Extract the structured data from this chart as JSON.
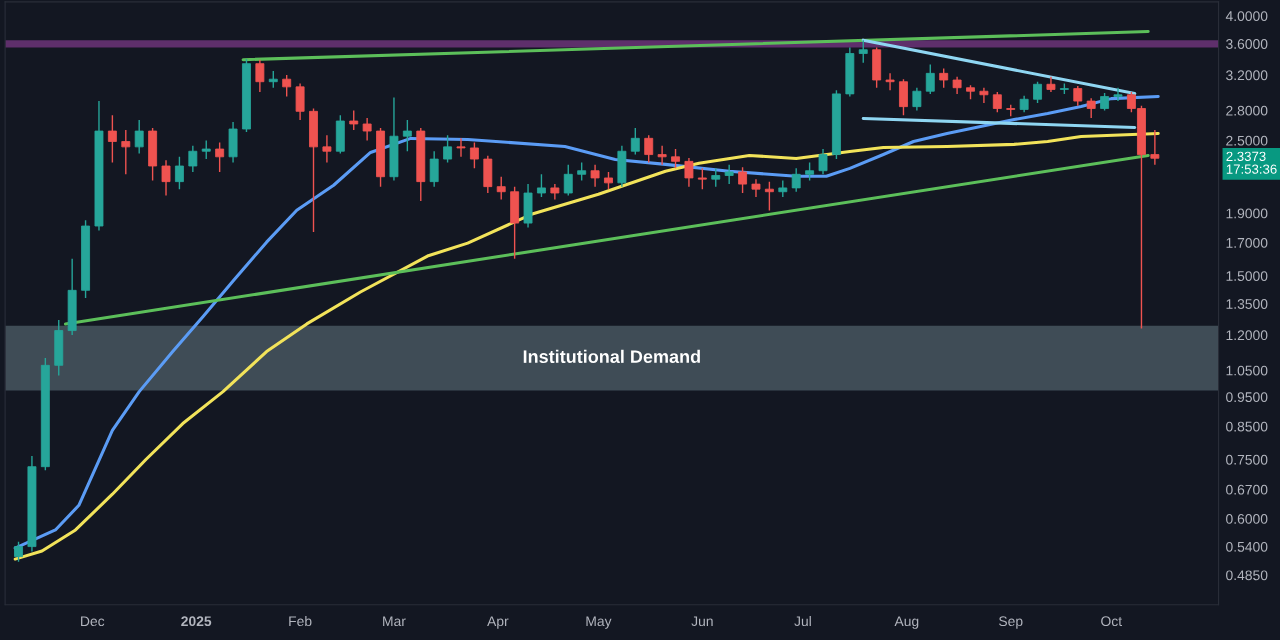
{
  "chart_data": {
    "type": "candlestick",
    "log": "y",
    "x": [
      "2024-11-09",
      "2024-11-13",
      "2024-11-17",
      "2024-11-21",
      "2024-11-25",
      "2024-11-29",
      "2024-12-03",
      "2024-12-07",
      "2024-12-11",
      "2024-12-15",
      "2024-12-19",
      "2024-12-23",
      "2024-12-27",
      "2024-12-31",
      "2025-01-04",
      "2025-01-08",
      "2025-01-12",
      "2025-01-16",
      "2025-01-20",
      "2025-01-24",
      "2025-01-28",
      "2025-02-01",
      "2025-02-05",
      "2025-02-09",
      "2025-02-13",
      "2025-02-17",
      "2025-02-21",
      "2025-02-25",
      "2025-03-01",
      "2025-03-05",
      "2025-03-09",
      "2025-03-13",
      "2025-03-17",
      "2025-03-21",
      "2025-03-25",
      "2025-03-29",
      "2025-04-02",
      "2025-04-06",
      "2025-04-10",
      "2025-04-14",
      "2025-04-18",
      "2025-04-22",
      "2025-04-26",
      "2025-04-30",
      "2025-05-04",
      "2025-05-08",
      "2025-05-12",
      "2025-05-16",
      "2025-05-20",
      "2025-05-24",
      "2025-05-28",
      "2025-06-01",
      "2025-06-05",
      "2025-06-09",
      "2025-06-13",
      "2025-06-17",
      "2025-06-21",
      "2025-06-25",
      "2025-06-29",
      "2025-07-03",
      "2025-07-07",
      "2025-07-11",
      "2025-07-15",
      "2025-07-19",
      "2025-07-23",
      "2025-07-27",
      "2025-07-31",
      "2025-08-04",
      "2025-08-08",
      "2025-08-12",
      "2025-08-16",
      "2025-08-20",
      "2025-08-24",
      "2025-08-28",
      "2025-09-01",
      "2025-09-05",
      "2025-09-09",
      "2025-09-13",
      "2025-09-17",
      "2025-09-21",
      "2025-09-25",
      "2025-09-29",
      "2025-10-03",
      "2025-10-07",
      "2025-10-10",
      "2025-10-14"
    ],
    "ohlc": [
      [
        0.52,
        0.55,
        0.51,
        0.54
      ],
      [
        0.54,
        0.76,
        0.53,
        0.73
      ],
      [
        0.73,
        1.1,
        0.72,
        1.07
      ],
      [
        1.07,
        1.27,
        1.03,
        1.22
      ],
      [
        1.22,
        1.6,
        1.2,
        1.42
      ],
      [
        1.42,
        1.85,
        1.38,
        1.81
      ],
      [
        1.81,
        2.9,
        1.78,
        2.59
      ],
      [
        2.59,
        2.75,
        2.3,
        2.49
      ],
      [
        2.49,
        2.6,
        2.2,
        2.44
      ],
      [
        2.44,
        2.7,
        2.38,
        2.59
      ],
      [
        2.59,
        2.62,
        2.15,
        2.27
      ],
      [
        2.27,
        2.32,
        2.03,
        2.14
      ],
      [
        2.14,
        2.35,
        2.08,
        2.27
      ],
      [
        2.27,
        2.45,
        2.22,
        2.4
      ],
      [
        2.4,
        2.5,
        2.33,
        2.42
      ],
      [
        2.42,
        2.48,
        2.22,
        2.35
      ],
      [
        2.35,
        2.68,
        2.3,
        2.61
      ],
      [
        2.61,
        3.4,
        2.58,
        3.34
      ],
      [
        3.34,
        3.39,
        3.0,
        3.12
      ],
      [
        3.12,
        3.25,
        3.05,
        3.15
      ],
      [
        3.15,
        3.2,
        2.95,
        3.06
      ],
      [
        3.06,
        3.1,
        2.7,
        2.79
      ],
      [
        2.79,
        2.82,
        1.77,
        2.44
      ],
      [
        2.44,
        2.55,
        2.3,
        2.4
      ],
      [
        2.4,
        2.75,
        2.38,
        2.69
      ],
      [
        2.69,
        2.8,
        2.6,
        2.66
      ],
      [
        2.66,
        2.72,
        2.5,
        2.59
      ],
      [
        2.59,
        2.62,
        2.1,
        2.18
      ],
      [
        2.18,
        2.94,
        2.15,
        2.54
      ],
      [
        2.54,
        2.7,
        2.4,
        2.59
      ],
      [
        2.59,
        2.62,
        1.99,
        2.14
      ],
      [
        2.14,
        2.4,
        2.1,
        2.33
      ],
      [
        2.33,
        2.55,
        2.3,
        2.44
      ],
      [
        2.44,
        2.52,
        2.35,
        2.43
      ],
      [
        2.43,
        2.48,
        2.25,
        2.33
      ],
      [
        2.33,
        2.36,
        2.05,
        2.1
      ],
      [
        2.1,
        2.18,
        2.0,
        2.06
      ],
      [
        2.06,
        2.1,
        1.6,
        1.83
      ],
      [
        1.83,
        2.12,
        1.8,
        2.05
      ],
      [
        2.05,
        2.2,
        2.02,
        2.09
      ],
      [
        2.09,
        2.12,
        2.0,
        2.05
      ],
      [
        2.05,
        2.28,
        2.03,
        2.2
      ],
      [
        2.2,
        2.3,
        2.15,
        2.23
      ],
      [
        2.23,
        2.28,
        2.1,
        2.17
      ],
      [
        2.17,
        2.22,
        2.08,
        2.13
      ],
      [
        2.13,
        2.45,
        2.1,
        2.4
      ],
      [
        2.4,
        2.62,
        2.37,
        2.52
      ],
      [
        2.52,
        2.55,
        2.3,
        2.37
      ],
      [
        2.37,
        2.45,
        2.28,
        2.35
      ],
      [
        2.35,
        2.42,
        2.25,
        2.31
      ],
      [
        2.31,
        2.34,
        2.1,
        2.17
      ],
      [
        2.17,
        2.25,
        2.08,
        2.16
      ],
      [
        2.16,
        2.25,
        2.1,
        2.19
      ],
      [
        2.19,
        2.28,
        2.12,
        2.22
      ],
      [
        2.22,
        2.26,
        2.05,
        2.12
      ],
      [
        2.12,
        2.16,
        2.02,
        2.08
      ],
      [
        2.08,
        2.14,
        1.92,
        2.06
      ],
      [
        2.06,
        2.15,
        2.02,
        2.09
      ],
      [
        2.09,
        2.25,
        2.06,
        2.2
      ],
      [
        2.2,
        2.3,
        2.15,
        2.23
      ],
      [
        2.23,
        2.42,
        2.2,
        2.37
      ],
      [
        2.37,
        3.02,
        2.33,
        2.98
      ],
      [
        2.98,
        3.55,
        2.95,
        3.47
      ],
      [
        3.47,
        3.65,
        3.35,
        3.52
      ],
      [
        3.52,
        3.55,
        3.05,
        3.14
      ],
      [
        3.14,
        3.22,
        3.02,
        3.12
      ],
      [
        3.12,
        3.15,
        2.75,
        2.84
      ],
      [
        2.84,
        3.05,
        2.8,
        3.01
      ],
      [
        3.01,
        3.33,
        2.98,
        3.22
      ],
      [
        3.22,
        3.28,
        3.05,
        3.14
      ],
      [
        3.14,
        3.18,
        2.98,
        3.05
      ],
      [
        3.05,
        3.08,
        2.92,
        3.01
      ],
      [
        3.01,
        3.05,
        2.88,
        2.97
      ],
      [
        2.97,
        3.0,
        2.78,
        2.82
      ],
      [
        2.82,
        2.86,
        2.74,
        2.81
      ],
      [
        2.81,
        2.96,
        2.78,
        2.92
      ],
      [
        2.92,
        3.12,
        2.88,
        3.09
      ],
      [
        3.09,
        3.18,
        3.0,
        3.03
      ],
      [
        3.03,
        3.1,
        2.98,
        3.04
      ],
      [
        3.04,
        3.07,
        2.85,
        2.9
      ],
      [
        2.9,
        2.93,
        2.72,
        2.82
      ],
      [
        2.82,
        2.99,
        2.8,
        2.95
      ],
      [
        2.95,
        3.05,
        2.9,
        2.97
      ],
      [
        2.97,
        3.0,
        2.78,
        2.82
      ],
      [
        2.82,
        2.85,
        1.23,
        2.37
      ],
      [
        2.37,
        2.6,
        2.28,
        2.3373
      ]
    ],
    "colors": [
      "#26a69a",
      "#26a69a",
      "#26a69a",
      "#26a69a",
      "#26a69a",
      "#26a69a",
      "#26a69a",
      "#ef5350",
      "#ef5350",
      "#26a69a",
      "#ef5350",
      "#ef5350",
      "#26a69a",
      "#26a69a",
      "#26a69a",
      "#ef5350",
      "#26a69a",
      "#26a69a",
      "#ef5350",
      "#26a69a",
      "#ef5350",
      "#ef5350",
      "#ef5350",
      "#ef5350",
      "#26a69a",
      "#ef5350",
      "#ef5350",
      "#ef5350",
      "#26a69a",
      "#26a69a",
      "#ef5350",
      "#26a69a",
      "#26a69a",
      "#ef5350",
      "#ef5350",
      "#ef5350",
      "#ef5350",
      "#ef5350",
      "#26a69a",
      "#26a69a",
      "#ef5350",
      "#26a69a",
      "#26a69a",
      "#ef5350",
      "#ef5350",
      "#26a69a",
      "#26a69a",
      "#ef5350",
      "#ef5350",
      "#ef5350",
      "#ef5350",
      "#ef5350",
      "#26a69a",
      "#26a69a",
      "#ef5350",
      "#ef5350",
      "#ef5350",
      "#26a69a",
      "#26a69a",
      "#26a69a",
      "#26a69a",
      "#26a69a",
      "#26a69a",
      "#26a69a",
      "#ef5350",
      "#ef5350",
      "#ef5350",
      "#26a69a",
      "#26a69a",
      "#ef5350",
      "#ef5350",
      "#ef5350",
      "#ef5350",
      "#ef5350",
      "#ef5350",
      "#26a69a",
      "#26a69a",
      "#ef5350",
      "#26a69a",
      "#ef5350",
      "#ef5350",
      "#26a69a",
      "#26a69a",
      "#ef5350",
      "#ef5350",
      "#ef5350"
    ],
    "series": [
      {
        "type": "line",
        "color": "#5b9cf5",
        "x": [
          "2024-11-08",
          "2024-11-20",
          "2024-11-27",
          "2024-12-07",
          "2024-12-15",
          "2024-12-25",
          "2025-01-03",
          "2025-01-12",
          "2025-01-22",
          "2025-01-31",
          "2025-02-11",
          "2025-02-22",
          "2025-03-06",
          "2025-03-23",
          "2025-04-21",
          "2025-05-06",
          "2025-05-21",
          "2025-06-09",
          "2025-06-29",
          "2025-07-08",
          "2025-07-15",
          "2025-07-25",
          "2025-08-03",
          "2025-08-13",
          "2025-08-23",
          "2025-09-02",
          "2025-09-12",
          "2025-09-22",
          "2025-10-01",
          "2025-10-15"
        ],
        "values": [
          0.537,
          0.575,
          0.631,
          0.837,
          0.969,
          1.127,
          1.285,
          1.471,
          1.703,
          1.921,
          2.111,
          2.389,
          2.519,
          2.509,
          2.444,
          2.327,
          2.284,
          2.225,
          2.184,
          2.184,
          2.25,
          2.371,
          2.49,
          2.566,
          2.635,
          2.705,
          2.767,
          2.841,
          2.927,
          2.95
        ]
      },
      {
        "type": "line",
        "color": "#f2e35a",
        "x": [
          "2024-11-08",
          "2024-11-16",
          "2024-11-26",
          "2024-12-07",
          "2024-12-17",
          "2024-12-28",
          "2025-01-09",
          "2025-01-22",
          "2025-02-03",
          "2025-02-19",
          "2025-03-11",
          "2025-03-23",
          "2025-04-11",
          "2025-05-01",
          "2025-05-21",
          "2025-05-31",
          "2025-06-15",
          "2025-06-29",
          "2025-07-15",
          "2025-07-25",
          "2025-08-13",
          "2025-09-02",
          "2025-09-12",
          "2025-09-22",
          "2025-10-15"
        ],
        "values": [
          0.515,
          0.531,
          0.575,
          0.658,
          0.75,
          0.859,
          0.969,
          1.127,
          1.251,
          1.411,
          1.616,
          1.697,
          1.892,
          2.04,
          2.225,
          2.293,
          2.362,
          2.336,
          2.398,
          2.435,
          2.444,
          2.463,
          2.49,
          2.538,
          2.566
        ]
      },
      {
        "type": "line",
        "color": "#5cbf5a",
        "x": [
          "2025-01-15",
          "2025-10-12"
        ],
        "values": [
          3.39,
          3.77
        ]
      },
      {
        "type": "line",
        "color": "#5cbf5a",
        "x": [
          "2024-11-23",
          "2025-10-12"
        ],
        "values": [
          1.251,
          2.362
        ]
      },
      {
        "type": "line",
        "color": "#8fd6f2",
        "x": [
          "2025-07-19",
          "2025-10-08"
        ],
        "values": [
          3.65,
          2.983
        ]
      },
      {
        "type": "line",
        "color": "#8fd6f2",
        "x": [
          "2025-07-19",
          "2025-10-08"
        ],
        "values": [
          2.715,
          2.625
        ]
      }
    ],
    "bands": [
      {
        "axis": "y",
        "from": 3.55,
        "to": 3.65,
        "color": "#5e2f6b"
      },
      {
        "axis": "y",
        "from": 0.973,
        "to": 1.242,
        "color": "#3f4c56",
        "label": "Institutional Demand"
      }
    ],
    "annotations": [
      "2.3373",
      "17:53:36"
    ],
    "xlim": [
      "2024-11-05",
      "2025-11-02"
    ],
    "xticks": [
      {
        "value": "2024-12-01",
        "label": "Dec"
      },
      {
        "value": "2025-01-01",
        "label": "2025"
      },
      {
        "value": "2025-02-01",
        "label": "Feb"
      },
      {
        "value": "2025-03-01",
        "label": "Mar"
      },
      {
        "value": "2025-04-01",
        "label": "Apr"
      },
      {
        "value": "2025-05-01",
        "label": "May"
      },
      {
        "value": "2025-06-01",
        "label": "Jun"
      },
      {
        "value": "2025-07-01",
        "label": "Jul"
      },
      {
        "value": "2025-08-01",
        "label": "Aug"
      },
      {
        "value": "2025-09-01",
        "label": "Sep"
      },
      {
        "value": "2025-10-01",
        "label": "Oct"
      }
    ],
    "ylim": [
      0.4335,
      4.216
    ],
    "yticks": [
      {
        "value": 0.485,
        "label": "0.4850"
      },
      {
        "value": 0.54,
        "label": "0.5400"
      },
      {
        "value": 0.6,
        "label": "0.6000"
      },
      {
        "value": 0.67,
        "label": "0.6700"
      },
      {
        "value": 0.75,
        "label": "0.7500"
      },
      {
        "value": 0.85,
        "label": "0.8500"
      },
      {
        "value": 0.95,
        "label": "0.9500"
      },
      {
        "value": 1.05,
        "label": "1.0500"
      },
      {
        "value": 1.2,
        "label": "1.2000"
      },
      {
        "value": 1.35,
        "label": "1.3500"
      },
      {
        "value": 1.5,
        "label": "1.5000"
      },
      {
        "value": 1.7,
        "label": "1.7000"
      },
      {
        "value": 1.9,
        "label": "1.9000"
      },
      {
        "value": 2.5,
        "label": "2.5000"
      },
      {
        "value": 2.8,
        "label": "2.8000"
      },
      {
        "value": 3.2,
        "label": "3.2000"
      },
      {
        "value": 3.6,
        "label": "3.6000"
      },
      {
        "value": 4.0,
        "label": "4.0000"
      }
    ]
  }
}
